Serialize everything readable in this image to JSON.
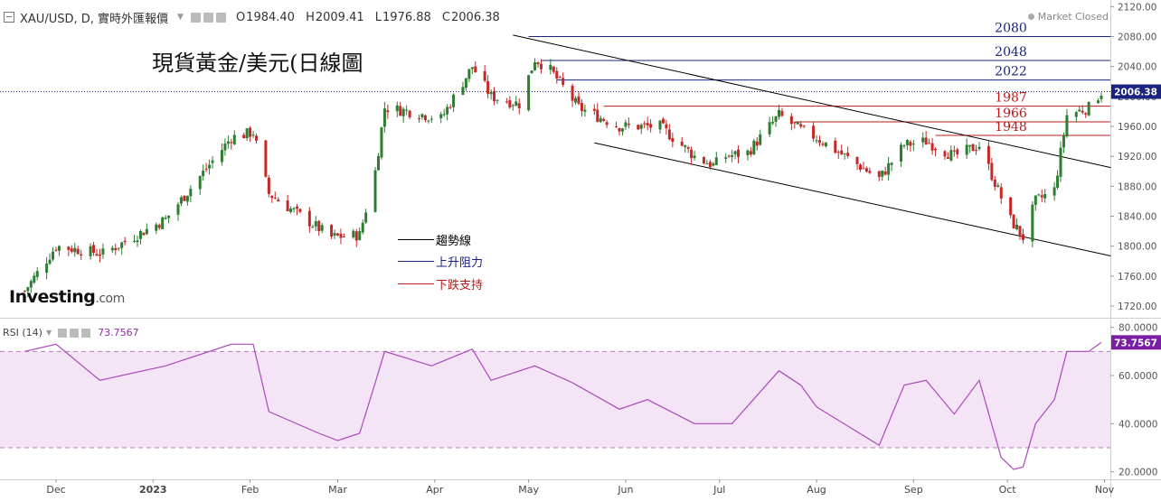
{
  "header": {
    "symbol": "XAU/USD, D, 實時外匯報價",
    "open_label": "O",
    "open": "1984.40",
    "high_label": "H",
    "high": "2009.41",
    "low_label": "L",
    "low": "1976.88",
    "close_label": "C",
    "close": "2006.38"
  },
  "market_status": "Market Closed",
  "annotation_title": "現貨黃金/美元(日線圖",
  "legend": [
    {
      "label": "趨勢線",
      "color": "#000000"
    },
    {
      "label": "上升阻力",
      "color": "#1a237e"
    },
    {
      "label": "下跌支持",
      "color": "#b71c1c"
    }
  ],
  "logo": {
    "brand": "Investing",
    "domain": ".com"
  },
  "rsi_header": {
    "label": "RSI (14)",
    "value": "73.7567"
  },
  "colors": {
    "up": "#2e7d32",
    "down": "#c62828",
    "resistance": "#1a237e",
    "support": "#b71c1c",
    "rsi_line": "#ab47bc",
    "rsi_band": "#f3e5f5",
    "last_price_tag": "#1a237e",
    "rsi_tag": "#7b1fa2"
  },
  "chart_data": [
    {
      "type": "candlestick",
      "title": "XAU/USD, D",
      "x_ticks": [
        "Dec",
        "2023",
        "Feb",
        "Mar",
        "Apr",
        "May",
        "Jun",
        "Jul",
        "Aug",
        "Sep",
        "Oct",
        "Nov"
      ],
      "y_ticks": [
        1720,
        1760,
        1800,
        1840,
        1880,
        1920,
        1960,
        2000,
        2040,
        2080,
        2120
      ],
      "ylim": [
        1710,
        2124
      ],
      "last_price": 2006.38,
      "last_price_label": "2006.38",
      "horizontal_levels": [
        {
          "value": 2080,
          "label": "2080",
          "kind": "resistance",
          "from": "2023-05-01",
          "to": "2023-10-31"
        },
        {
          "value": 2048,
          "label": "2048",
          "kind": "resistance",
          "from": "2023-05-05",
          "to": "2023-10-31"
        },
        {
          "value": 2022,
          "label": "2022",
          "kind": "resistance",
          "from": "2023-05-10",
          "to": "2023-10-31"
        },
        {
          "value": 1987,
          "label": "1987",
          "kind": "support",
          "from": "2023-05-25",
          "to": "2023-10-31"
        },
        {
          "value": 1966,
          "label": "1966",
          "kind": "support",
          "from": "2023-07-25",
          "to": "2023-10-31"
        },
        {
          "value": 1948,
          "label": "1948",
          "kind": "support",
          "from": "2023-09-08",
          "to": "2023-10-31"
        }
      ],
      "trendlines": [
        {
          "from": {
            "date": "2023-04-26",
            "value": 2082
          },
          "to": {
            "date": "2023-11-03",
            "value": 1905
          }
        },
        {
          "from": {
            "date": "2023-05-22",
            "value": 1938
          },
          "to": {
            "date": "2023-11-03",
            "value": 1787
          }
        }
      ],
      "anchors": [
        {
          "date": "2022-11-21",
          "close": 1740
        },
        {
          "date": "2022-12-01",
          "close": 1800
        },
        {
          "date": "2022-12-16",
          "close": 1790
        },
        {
          "date": "2023-01-05",
          "close": 1836
        },
        {
          "date": "2023-01-26",
          "close": 1945
        },
        {
          "date": "2023-02-02",
          "close": 1952
        },
        {
          "date": "2023-02-07",
          "close": 1870
        },
        {
          "date": "2023-02-27",
          "close": 1812
        },
        {
          "date": "2023-03-08",
          "close": 1815
        },
        {
          "date": "2023-03-13",
          "close": 1900
        },
        {
          "date": "2023-03-16",
          "close": 1985
        },
        {
          "date": "2023-03-24",
          "close": 1980
        },
        {
          "date": "2023-04-03",
          "close": 1970
        },
        {
          "date": "2023-04-13",
          "close": 2040
        },
        {
          "date": "2023-04-19",
          "close": 2000
        },
        {
          "date": "2023-04-28",
          "close": 1990
        },
        {
          "date": "2023-05-03",
          "close": 2050
        },
        {
          "date": "2023-05-08",
          "close": 2035
        },
        {
          "date": "2023-05-17",
          "close": 1985
        },
        {
          "date": "2023-05-30",
          "close": 1960
        },
        {
          "date": "2023-06-12",
          "close": 1960
        },
        {
          "date": "2023-06-23",
          "close": 1920
        },
        {
          "date": "2023-06-29",
          "close": 1908
        },
        {
          "date": "2023-07-03",
          "close": 1920
        },
        {
          "date": "2023-07-10",
          "close": 1925
        },
        {
          "date": "2023-07-20",
          "close": 1975
        },
        {
          "date": "2023-07-27",
          "close": 1955
        },
        {
          "date": "2023-08-01",
          "close": 1945
        },
        {
          "date": "2023-08-21",
          "close": 1890
        },
        {
          "date": "2023-08-29",
          "close": 1935
        },
        {
          "date": "2023-09-05",
          "close": 1940
        },
        {
          "date": "2023-09-14",
          "close": 1920
        },
        {
          "date": "2023-09-22",
          "close": 1935
        },
        {
          "date": "2023-10-02",
          "close": 1835
        },
        {
          "date": "2023-10-06",
          "close": 1812
        },
        {
          "date": "2023-10-10",
          "close": 1860
        },
        {
          "date": "2023-10-16",
          "close": 1875
        },
        {
          "date": "2023-10-20",
          "close": 1975
        },
        {
          "date": "2023-10-27",
          "close": 1985
        },
        {
          "date": "2023-10-31",
          "close": 2006
        }
      ]
    },
    {
      "type": "line",
      "title": "RSI (14)",
      "y_ticks": [
        20,
        40,
        60,
        80
      ],
      "ylim": [
        17,
        81
      ],
      "band": [
        30,
        70
      ],
      "last_value": 73.7567,
      "last_value_label": "73.7567",
      "points": [
        {
          "date": "2022-11-21",
          "value": 70
        },
        {
          "date": "2022-12-01",
          "value": 73
        },
        {
          "date": "2022-12-15",
          "value": 58
        },
        {
          "date": "2023-01-05",
          "value": 64
        },
        {
          "date": "2023-01-26",
          "value": 73
        },
        {
          "date": "2023-02-02",
          "value": 73
        },
        {
          "date": "2023-02-07",
          "value": 45
        },
        {
          "date": "2023-02-23",
          "value": 36
        },
        {
          "date": "2023-03-01",
          "value": 33
        },
        {
          "date": "2023-03-08",
          "value": 36
        },
        {
          "date": "2023-03-13",
          "value": 57
        },
        {
          "date": "2023-03-16",
          "value": 70
        },
        {
          "date": "2023-03-31",
          "value": 64
        },
        {
          "date": "2023-04-13",
          "value": 71
        },
        {
          "date": "2023-04-19",
          "value": 58
        },
        {
          "date": "2023-05-03",
          "value": 64
        },
        {
          "date": "2023-05-15",
          "value": 57
        },
        {
          "date": "2023-05-30",
          "value": 46
        },
        {
          "date": "2023-06-08",
          "value": 50
        },
        {
          "date": "2023-06-23",
          "value": 40
        },
        {
          "date": "2023-07-05",
          "value": 40
        },
        {
          "date": "2023-07-20",
          "value": 62
        },
        {
          "date": "2023-07-27",
          "value": 56
        },
        {
          "date": "2023-08-01",
          "value": 47
        },
        {
          "date": "2023-08-21",
          "value": 31
        },
        {
          "date": "2023-08-29",
          "value": 56
        },
        {
          "date": "2023-09-05",
          "value": 58
        },
        {
          "date": "2023-09-14",
          "value": 44
        },
        {
          "date": "2023-09-22",
          "value": 58
        },
        {
          "date": "2023-09-29",
          "value": 26
        },
        {
          "date": "2023-10-03",
          "value": 21
        },
        {
          "date": "2023-10-06",
          "value": 22
        },
        {
          "date": "2023-10-10",
          "value": 40
        },
        {
          "date": "2023-10-16",
          "value": 50
        },
        {
          "date": "2023-10-20",
          "value": 70
        },
        {
          "date": "2023-10-27",
          "value": 70
        },
        {
          "date": "2023-10-31",
          "value": 73.76
        }
      ]
    }
  ]
}
